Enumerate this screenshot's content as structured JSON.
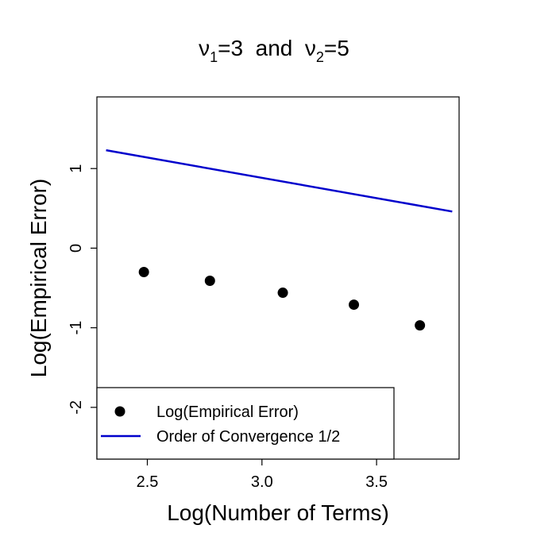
{
  "chart_data": {
    "type": "scatter",
    "title": {
      "part1_symbol": "ν",
      "part1_sub": "1",
      "part1_rest": "=3  and  ",
      "part2_symbol": "ν",
      "part2_sub": "2",
      "part2_rest": "=5"
    },
    "xlabel": "Log(Number of Terms)",
    "ylabel": "Log(Empirical Error)",
    "xlim": [
      2.28,
      3.86
    ],
    "ylim": [
      -2.65,
      1.9
    ],
    "xticks": [
      2.5,
      3.0,
      3.5
    ],
    "xtick_labels": [
      "2.5",
      "3.0",
      "3.5"
    ],
    "yticks": [
      -2,
      -1,
      0,
      1
    ],
    "ytick_labels": [
      "-2",
      "-1",
      "0",
      "1"
    ],
    "grid": false,
    "legend_position": "bottom-left",
    "series": [
      {
        "name": "Log(Empirical Error)",
        "kind": "points",
        "color": "#000000",
        "x": [
          2.485,
          2.773,
          3.091,
          3.401,
          3.689
        ],
        "y": [
          -0.3,
          -0.41,
          -0.56,
          -0.71,
          -0.97
        ]
      },
      {
        "name": "Order of Convergence 1/2",
        "kind": "line",
        "color": "#0000cc",
        "x": [
          2.32,
          3.83
        ],
        "y": [
          1.23,
          0.46
        ]
      }
    ]
  }
}
